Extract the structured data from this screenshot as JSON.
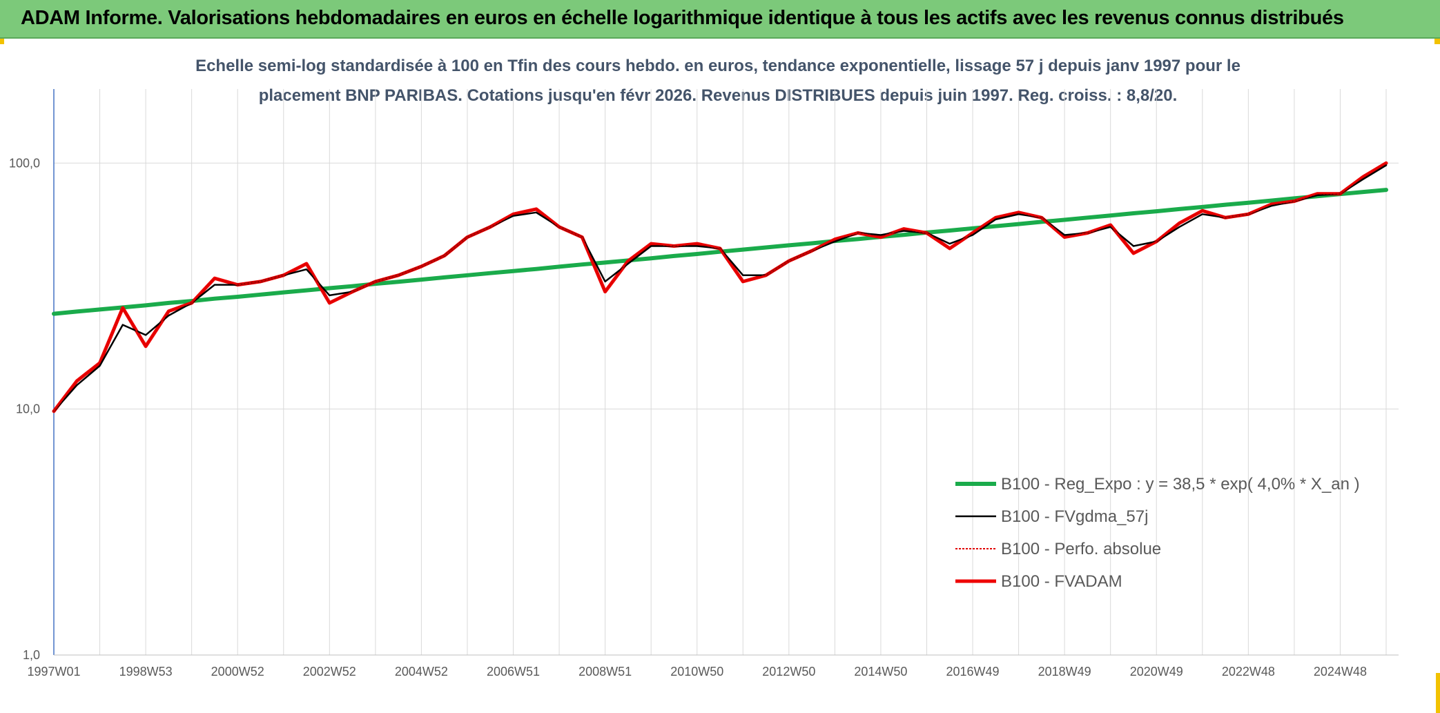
{
  "chart_data": {
    "type": "line",
    "title": "ADAM Informe. Valorisations hebdomadaires en euros en échelle logarithmique identique à tous les actifs avec les revenus connus distribués",
    "subtitle": [
      "Echelle semi-log standardisée à 100 en Tfin des cours hebdo. en euros, tendance exponentielle, lissage 57 j depuis janv 1997 pour le",
      "placement BNP PARIBAS. Cotations jusqu'en févr 2026. Revenus DISTRIBUES depuis juin 1997. Reg. croiss. : 8,8/20."
    ],
    "log_scale": true,
    "grid": true,
    "ylim": [
      1,
      200
    ],
    "yticks": [
      {
        "value": 1,
        "label": "1,0"
      },
      {
        "value": 10,
        "label": "10,0"
      },
      {
        "value": 100,
        "label": "100,0"
      }
    ],
    "categories": [
      "1997W01",
      null,
      null,
      null,
      "1998W53",
      null,
      null,
      null,
      "2000W52",
      null,
      null,
      null,
      "2002W52",
      null,
      null,
      null,
      "2004W52",
      null,
      null,
      null,
      "2006W51",
      null,
      null,
      null,
      "2008W51",
      null,
      null,
      null,
      "2010W50",
      null,
      null,
      null,
      "2012W50",
      null,
      null,
      null,
      "2014W50",
      null,
      null,
      null,
      "2016W49",
      null,
      null,
      null,
      "2018W49",
      null,
      null,
      null,
      "2020W49",
      null,
      null,
      null,
      "2022W48",
      null,
      null,
      null,
      "2024W48",
      null,
      null
    ],
    "series": [
      {
        "name": "B100 - Reg_Expo : y = 38,5 * exp( 4,0% *  X_an )",
        "color": "#1aab4b",
        "values": [
          24.4,
          24.9,
          25.4,
          25.9,
          26.4,
          27.0,
          27.5,
          28.1,
          28.6,
          29.2,
          29.8,
          30.4,
          31.0,
          31.6,
          32.3,
          32.9,
          33.6,
          34.3,
          35.0,
          35.7,
          36.4,
          37.1,
          37.9,
          38.7,
          39.4,
          40.2,
          41.0,
          41.9,
          42.7,
          43.6,
          44.5,
          45.4,
          46.3,
          47.2,
          48.2,
          49.1,
          50.1,
          51.1,
          52.2,
          53.2,
          54.3,
          55.4,
          56.5,
          57.7,
          58.8,
          60.0,
          61.2,
          62.5,
          63.7,
          65.0,
          66.3,
          67.7,
          69.0,
          70.4,
          71.9,
          73.3,
          74.8,
          76.3,
          77.8
        ]
      },
      {
        "name": "B100 - FVgdma_57j",
        "color": "#000000",
        "values": [
          9.8,
          12.5,
          15,
          22,
          20,
          24,
          27,
          32,
          32,
          33,
          35,
          37,
          29,
          30,
          33,
          35,
          38,
          42,
          50,
          55,
          61,
          63,
          55,
          50,
          33,
          39,
          46,
          46,
          46,
          45,
          35,
          35,
          40,
          44,
          48,
          52,
          51,
          53,
          52,
          47,
          51,
          59,
          62,
          60,
          51,
          52,
          55,
          46,
          48,
          55,
          62,
          60,
          62,
          67,
          70,
          74,
          75,
          86,
          98
        ]
      },
      {
        "name": "B100 - Perfo. absolue",
        "color": "#e00000",
        "dashed": true,
        "values": [
          9.8,
          13,
          15.4,
          25.8,
          18,
          25,
          27,
          34,
          32,
          33,
          35,
          39,
          27,
          30,
          33,
          35,
          38,
          42,
          50,
          55,
          62,
          65,
          55,
          50,
          30,
          40,
          47,
          46,
          47,
          45,
          33,
          35,
          40,
          44,
          49,
          52,
          50,
          54,
          52,
          45,
          52,
          60,
          63,
          60,
          50,
          52,
          56,
          43,
          48,
          57,
          64,
          60,
          62,
          68,
          70,
          75,
          75,
          88,
          100
        ]
      },
      {
        "name": "B100 - FVADAM",
        "color": "#ee0000",
        "values": [
          9.8,
          13,
          15.4,
          25.8,
          18,
          25,
          27,
          34,
          32,
          33,
          35,
          39,
          27,
          30,
          33,
          35,
          38,
          42,
          50,
          55,
          62,
          65,
          55,
          50,
          30,
          40,
          47,
          46,
          47,
          45,
          33,
          35,
          40,
          44,
          49,
          52,
          50,
          54,
          52,
          45,
          52,
          60,
          63,
          60,
          50,
          52,
          56,
          43,
          48,
          57,
          64,
          60,
          62,
          68,
          70,
          75,
          75,
          88,
          100
        ]
      }
    ]
  }
}
